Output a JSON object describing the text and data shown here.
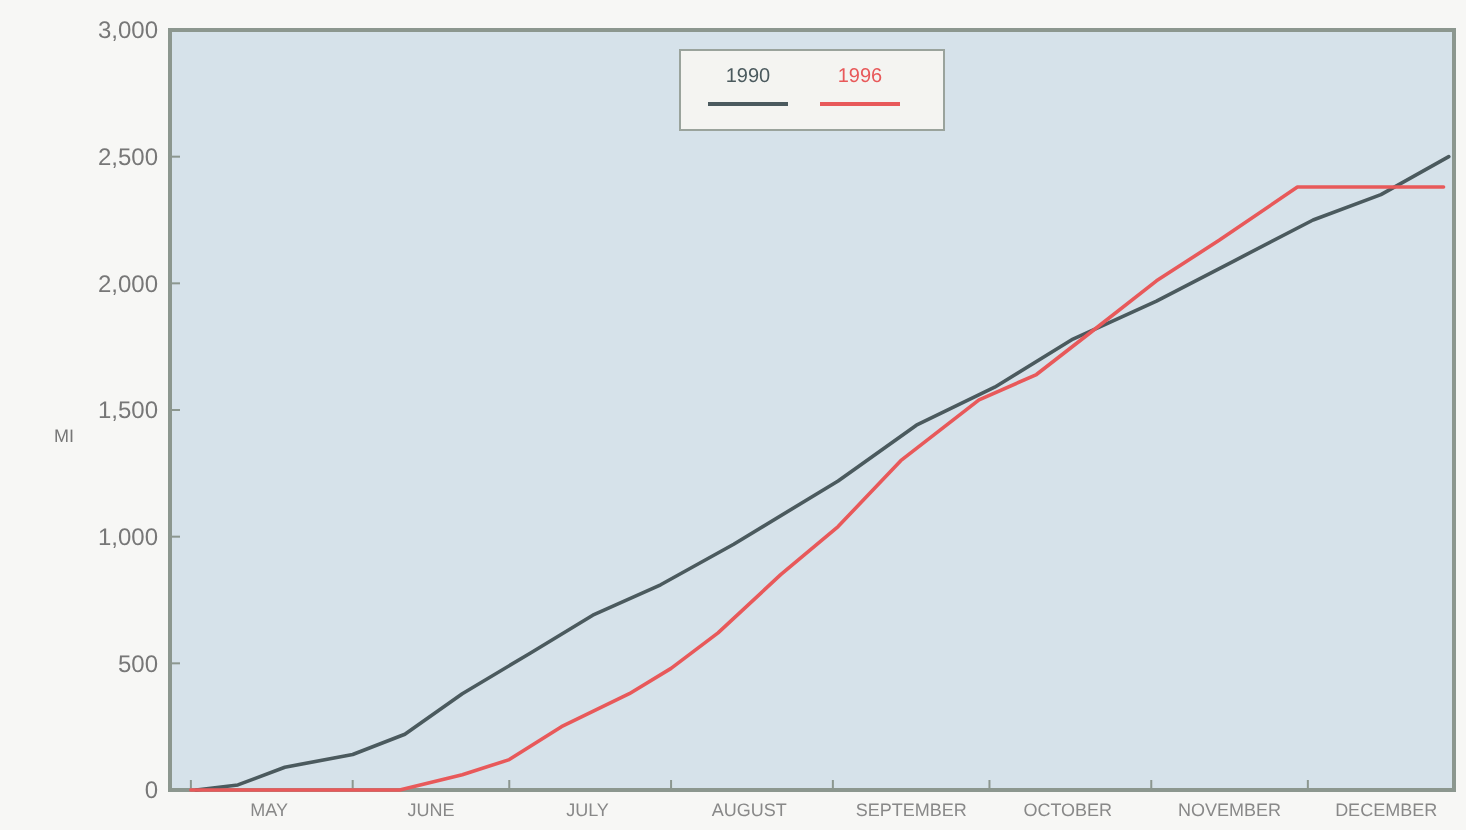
{
  "chart_data": {
    "type": "line",
    "ylabel": "MI",
    "xlim": [
      "--04-27",
      "--12-29"
    ],
    "xticks": [
      {
        "value": "--05-01",
        "label": null
      },
      {
        "value": "--05-16",
        "label": "MAY"
      },
      {
        "value": "--06-01",
        "label": null
      },
      {
        "value": "--06-16",
        "label": "JUNE"
      },
      {
        "value": "--07-01",
        "label": null
      },
      {
        "value": "--07-16",
        "label": "JULY"
      },
      {
        "value": "--08-01",
        "label": null
      },
      {
        "value": "--08-16",
        "label": "AUGUST"
      },
      {
        "value": "--09-01",
        "label": null
      },
      {
        "value": "--09-16",
        "label": "SEPTEMBER"
      },
      {
        "value": "--10-01",
        "label": null
      },
      {
        "value": "--10-16",
        "label": "OCTOBER"
      },
      {
        "value": "--11-01",
        "label": null
      },
      {
        "value": "--11-16",
        "label": "NOVEMBER"
      },
      {
        "value": "--12-01",
        "label": null
      },
      {
        "value": "--12-16",
        "label": "DECEMBER"
      }
    ],
    "ylim": [
      0,
      3000
    ],
    "yticks": [
      0,
      500,
      {
        "value": 1000,
        "label": "1,000"
      },
      {
        "value": 1500,
        "label": "1,500"
      },
      {
        "value": 2000,
        "label": "2,000"
      },
      {
        "value": 2500,
        "label": "2,500"
      },
      {
        "value": 3000,
        "label": "3,000"
      }
    ],
    "grid": false,
    "legend": "top",
    "marker": "none",
    "line_style": "solid",
    "series": [
      {
        "name": "1990",
        "color": "#4b5a5e",
        "x": [
          "--05-02",
          "--05-10",
          "--05-19",
          "--06-01",
          "--06-11",
          "--06-22",
          "--07-05",
          "--07-17",
          "--07-30",
          "--08-13",
          "--09-02",
          "--09-17",
          "--10-02",
          "--10-17",
          "--11-02",
          "--11-17",
          "--12-02",
          "--12-15",
          "--12-28"
        ],
        "values": [
          0,
          20,
          90,
          140,
          220,
          380,
          540,
          690,
          810,
          970,
          1220,
          1440,
          1590,
          1780,
          1930,
          2090,
          2250,
          2350,
          2500
        ]
      },
      {
        "name": "1996",
        "color": "#e8595a",
        "x": [
          "--05-01",
          "--06-10",
          "--06-22",
          "--07-01",
          "--07-11",
          "--07-24",
          "--08-01",
          "--08-10",
          "--08-22",
          "--09-02",
          "--09-14",
          "--09-29",
          "--10-10",
          "--10-20",
          "--11-02",
          "--11-14",
          "--11-29",
          "--12-27"
        ],
        "values": [
          0,
          0,
          60,
          120,
          250,
          380,
          480,
          620,
          850,
          1040,
          1300,
          1540,
          1640,
          1800,
          2010,
          2170,
          2380,
          2380
        ]
      }
    ]
  }
}
